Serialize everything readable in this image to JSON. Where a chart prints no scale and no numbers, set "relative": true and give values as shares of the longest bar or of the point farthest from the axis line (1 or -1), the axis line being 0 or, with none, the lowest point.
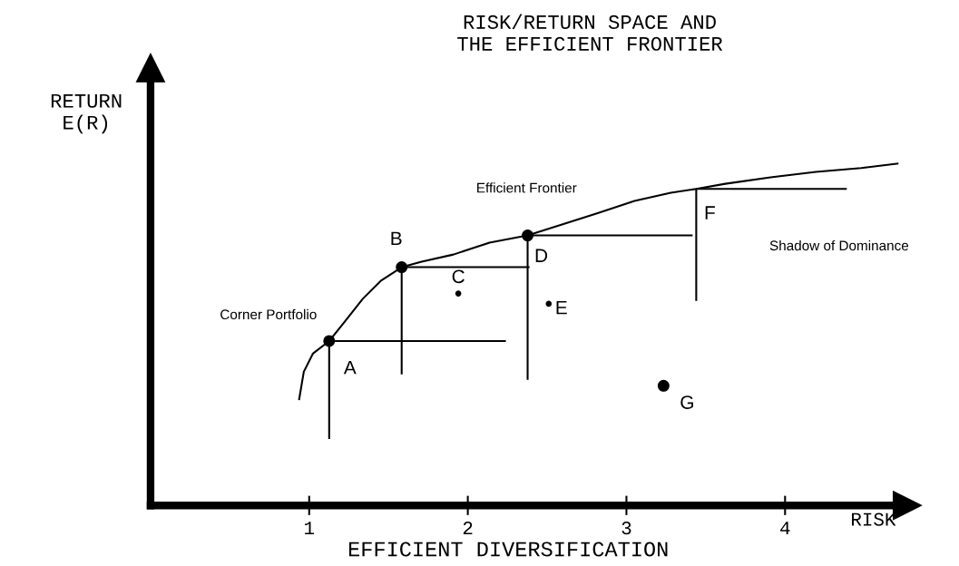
{
  "chart_data": {
    "type": "line",
    "title": "RISK/RETURN SPACE AND\nTHE EFFICIENT FRONTIER",
    "xlabel": "RISK",
    "ylabel": "RETURN\nE(R)",
    "relative": true,
    "xlim": [
      0,
      4.77
    ],
    "xticks": [
      1,
      2,
      3,
      4
    ],
    "grid": false,
    "legend": false,
    "marker": "none",
    "line_style": "solid",
    "series": [
      {
        "color": "#000000",
        "x": [
          0.937,
          0.966,
          1.023,
          1.126,
          1.223,
          1.337,
          1.451,
          1.583,
          1.709,
          1.909,
          2.137,
          2.377,
          2.594,
          2.823,
          3.051,
          3.28,
          3.44,
          3.623,
          3.909,
          4.194,
          4.48,
          4.709
        ],
        "values": [
          0.311,
          0.391,
          0.444,
          0.481,
          0.537,
          0.604,
          0.657,
          0.697,
          0.713,
          0.734,
          0.769,
          0.79,
          0.822,
          0.856,
          0.891,
          0.915,
          0.926,
          0.941,
          0.96,
          0.976,
          0.987,
          1.0
        ]
      },
      {
        "color": "#000000",
        "x": [
          2.234,
          1.126,
          1.126
        ],
        "values": [
          0.481,
          0.481,
          0.197
        ]
      },
      {
        "color": "#000000",
        "x": [
          2.383,
          1.583,
          1.583
        ],
        "values": [
          0.697,
          0.697,
          0.386
        ]
      },
      {
        "color": "#000000",
        "x": [
          3.411,
          2.377,
          2.377
        ],
        "values": [
          0.79,
          0.79,
          0.37
        ]
      },
      {
        "color": "#000000",
        "x": [
          4.383,
          3.44,
          3.44
        ],
        "values": [
          0.926,
          0.926,
          0.601
        ]
      },
      {
        "type": "scatter",
        "color": "#000000",
        "marker": "circle",
        "x": [
          1.126,
          1.583,
          2.377,
          3.234
        ],
        "values": [
          0.481,
          0.697,
          0.79,
          0.35
        ]
      },
      {
        "type": "scatter",
        "color": "#000000",
        "marker": "circle",
        "x": [
          1.94,
          2.51
        ],
        "values": [
          0.62,
          0.59
        ]
      }
    ],
    "annotations": [
      {
        "text": "A",
        "x": 1.126,
        "y": 0.481
      },
      {
        "text": "B",
        "x": 1.583,
        "y": 0.697
      },
      {
        "text": "C",
        "x": 1.94,
        "y": 0.62
      },
      {
        "text": "D",
        "x": 2.377,
        "y": 0.79
      },
      {
        "text": "E",
        "x": 2.51,
        "y": 0.59
      },
      {
        "text": "F",
        "x": 3.44,
        "y": 0.926
      },
      {
        "text": "G",
        "x": 3.234,
        "y": 0.35
      },
      {
        "text": "Corner Portfolio",
        "x": 1.126,
        "y": 0.481
      },
      "Efficient Frontier",
      "Shadow of Dominance",
      "EFFICIENT DIVERSIFICATION"
    ]
  }
}
